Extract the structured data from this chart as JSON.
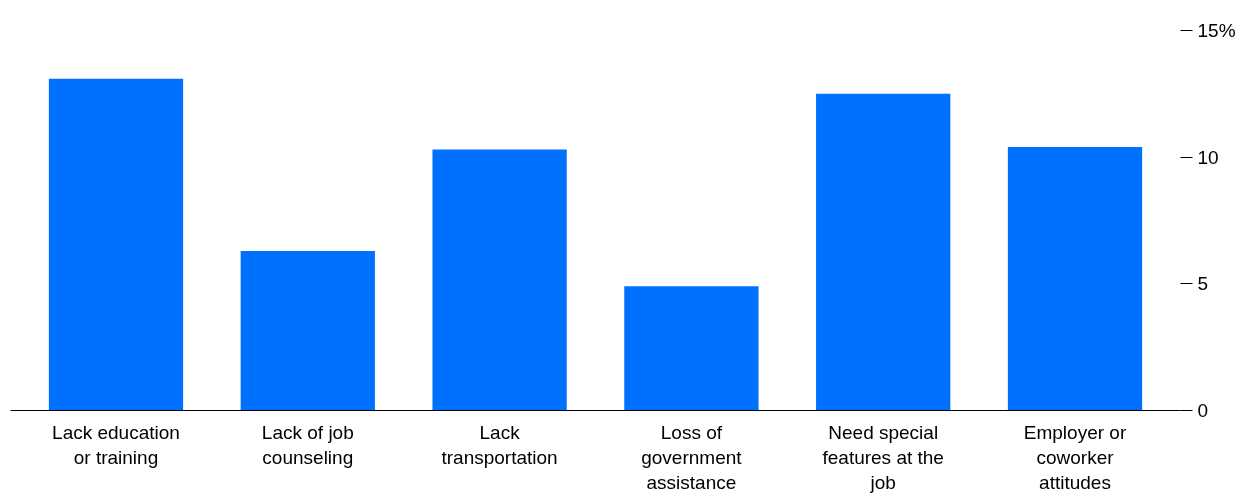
{
  "chart_data": {
    "type": "bar",
    "categories": [
      "Lack education or training",
      "Lack of job counseling",
      "Lack transportation",
      "Loss of government assistance",
      "Need special features at the job",
      "Employer or coworker attitudes"
    ],
    "values": [
      13.1,
      6.3,
      10.3,
      4.9,
      12.5,
      10.4
    ],
    "color": "#0070ff",
    "ylim": [
      0,
      15
    ],
    "yticks": [
      0,
      5,
      10,
      {
        "value": 15,
        "label": "15%"
      }
    ],
    "grid": false
  }
}
